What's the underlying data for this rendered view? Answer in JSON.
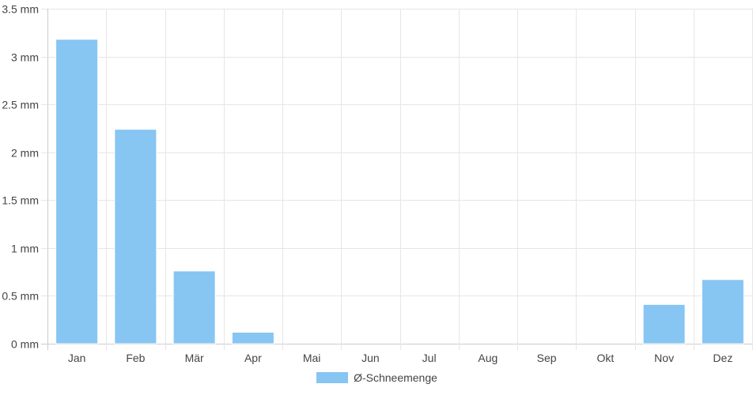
{
  "chart_data": {
    "type": "bar",
    "categories": [
      "Jan",
      "Feb",
      "Mär",
      "Apr",
      "Mai",
      "Jun",
      "Jul",
      "Aug",
      "Sep",
      "Okt",
      "Nov",
      "Dez"
    ],
    "series": [
      {
        "name": "Ø-Schneemenge",
        "values": [
          3.18,
          2.24,
          0.76,
          0.12,
          0,
          0,
          0,
          0,
          0,
          0,
          0.41,
          0.67
        ],
        "color": "#87c5f2"
      }
    ],
    "ylim": [
      0,
      3.5
    ],
    "yticks": [
      "0 mm",
      "0.5 mm",
      "1 mm",
      "1.5 mm",
      "2 mm",
      "2.5 mm",
      "3 mm",
      "3.5 mm"
    ],
    "grid": true,
    "legend_position": "bottom"
  }
}
